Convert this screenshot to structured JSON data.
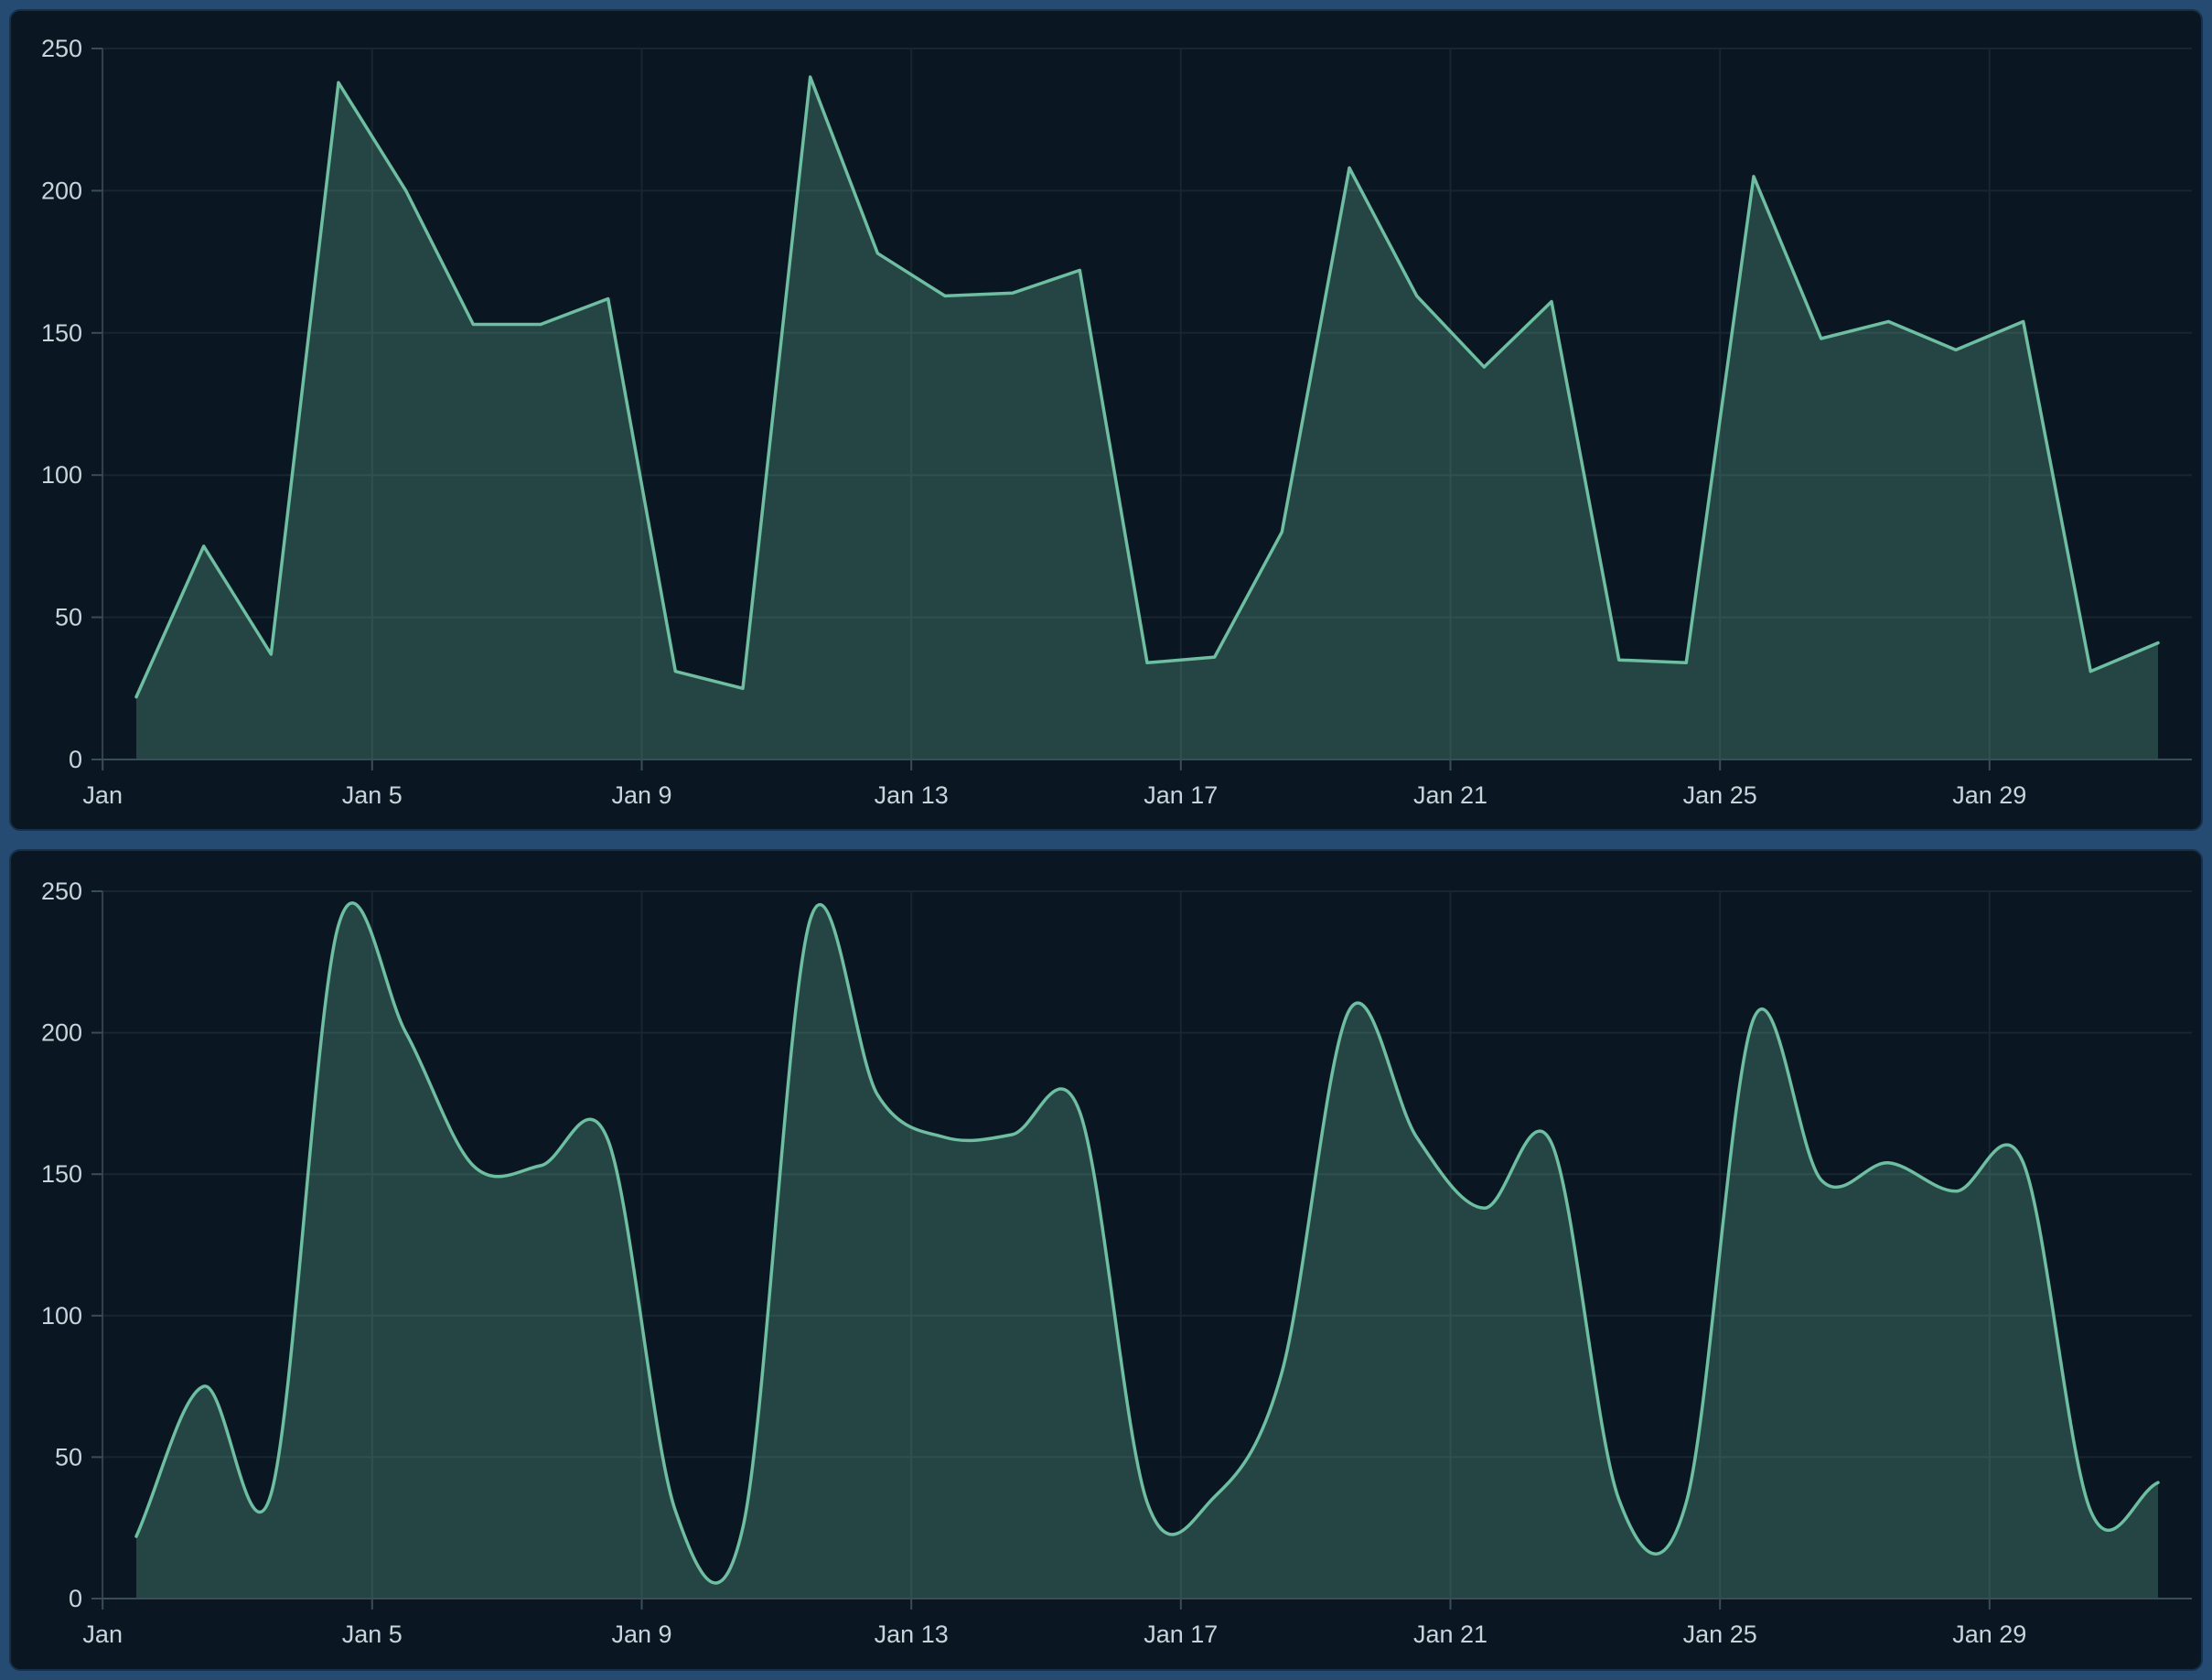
{
  "page": {
    "title": ""
  },
  "panels": [
    {
      "name": "area-chart-linear",
      "curve": "linear"
    },
    {
      "name": "area-chart-smooth",
      "curve": "smooth"
    }
  ],
  "colors": {
    "page_bg": "#254b72",
    "card_bg": "#0a1722",
    "card_border": "#16304a",
    "line": "#6cbfa1",
    "fill": "rgba(108,191,161,0.28)",
    "grid": "#18262f",
    "axis": "#3b4c59",
    "label": "#c9d3da"
  },
  "chart_data": [
    {
      "type": "area",
      "curve": "linear",
      "title": "",
      "xlabel": "",
      "ylabel": "",
      "x": [
        "Jan 1",
        "Jan 2",
        "Jan 3",
        "Jan 4",
        "Jan 5",
        "Jan 6",
        "Jan 7",
        "Jan 8",
        "Jan 9",
        "Jan 10",
        "Jan 11",
        "Jan 12",
        "Jan 13",
        "Jan 14",
        "Jan 15",
        "Jan 16",
        "Jan 17",
        "Jan 18",
        "Jan 19",
        "Jan 20",
        "Jan 21",
        "Jan 22",
        "Jan 23",
        "Jan 24",
        "Jan 25",
        "Jan 26",
        "Jan 27",
        "Jan 28",
        "Jan 29",
        "Jan 30",
        "Jan 31"
      ],
      "series": [
        {
          "name": "daily-values",
          "values": [
            22,
            75,
            37,
            238,
            200,
            153,
            153,
            162,
            31,
            25,
            240,
            178,
            163,
            164,
            172,
            34,
            36,
            80,
            208,
            163,
            138,
            161,
            35,
            34,
            205,
            148,
            154,
            144,
            154,
            31,
            41
          ]
        }
      ],
      "ylim": [
        0,
        250
      ],
      "y_ticks": [
        0,
        50,
        100,
        150,
        200,
        250
      ],
      "x_tick_days": [
        1,
        5,
        9,
        13,
        17,
        21,
        25,
        29
      ],
      "x_tick_labels": [
        "Jan",
        "Jan 5",
        "Jan 9",
        "Jan 13",
        "Jan 17",
        "Jan 21",
        "Jan 25",
        "Jan 29"
      ],
      "grid": true,
      "legend_position": "none"
    },
    {
      "type": "area",
      "curve": "smooth",
      "title": "",
      "xlabel": "",
      "ylabel": "",
      "x": [
        "Jan 1",
        "Jan 2",
        "Jan 3",
        "Jan 4",
        "Jan 5",
        "Jan 6",
        "Jan 7",
        "Jan 8",
        "Jan 9",
        "Jan 10",
        "Jan 11",
        "Jan 12",
        "Jan 13",
        "Jan 14",
        "Jan 15",
        "Jan 16",
        "Jan 17",
        "Jan 18",
        "Jan 19",
        "Jan 20",
        "Jan 21",
        "Jan 22",
        "Jan 23",
        "Jan 24",
        "Jan 25",
        "Jan 26",
        "Jan 27",
        "Jan 28",
        "Jan 29",
        "Jan 30",
        "Jan 31"
      ],
      "series": [
        {
          "name": "daily-values",
          "values": [
            22,
            75,
            37,
            238,
            200,
            153,
            153,
            162,
            31,
            25,
            240,
            178,
            163,
            164,
            172,
            34,
            36,
            80,
            208,
            163,
            138,
            161,
            35,
            34,
            205,
            148,
            154,
            144,
            154,
            31,
            41
          ]
        }
      ],
      "ylim": [
        0,
        250
      ],
      "y_ticks": [
        0,
        50,
        100,
        150,
        200,
        250
      ],
      "x_tick_days": [
        1,
        5,
        9,
        13,
        17,
        21,
        25,
        29
      ],
      "x_tick_labels": [
        "Jan",
        "Jan 5",
        "Jan 9",
        "Jan 13",
        "Jan 17",
        "Jan 21",
        "Jan 25",
        "Jan 29"
      ],
      "grid": true,
      "legend_position": "none"
    }
  ]
}
